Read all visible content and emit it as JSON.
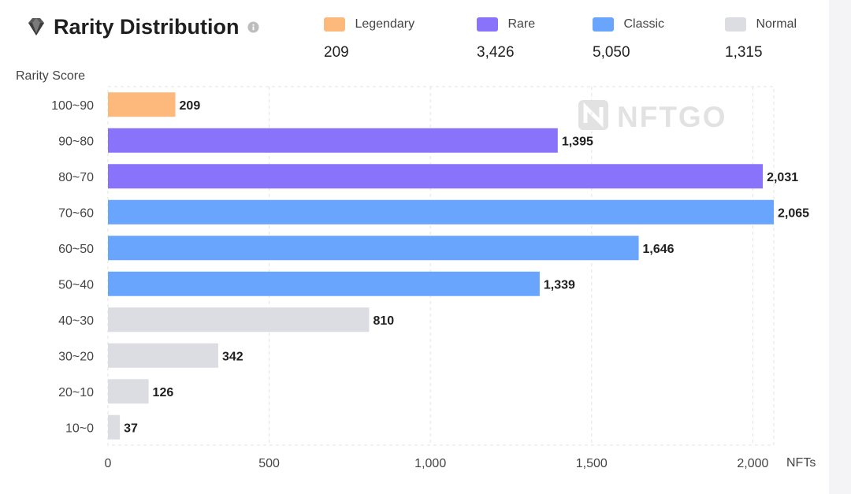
{
  "header": {
    "title": "Rarity Distribution",
    "title_icon": "diamond-icon",
    "info_icon": "info-icon"
  },
  "legend": [
    {
      "name": "Legendary",
      "count": "209",
      "color": "#fdb97c"
    },
    {
      "name": "Rare",
      "count": "3,426",
      "color": "#8a73fb"
    },
    {
      "name": "Classic",
      "count": "5,050",
      "color": "#69a5fd"
    },
    {
      "name": "Normal",
      "count": "1,315",
      "color": "#dcdde3"
    }
  ],
  "watermark": "NFTGO",
  "chart_data": {
    "type": "bar",
    "orientation": "horizontal",
    "ylabel": "Rarity Score",
    "xlabel": "NFTs",
    "categories": [
      "100~90",
      "90~80",
      "80~70",
      "70~60",
      "60~50",
      "50~40",
      "40~30",
      "30~20",
      "20~10",
      "10~0"
    ],
    "values": [
      209,
      1395,
      2031,
      2065,
      1646,
      1339,
      810,
      342,
      126,
      37
    ],
    "value_labels": [
      "209",
      "1,395",
      "2,031",
      "2,065",
      "1,646",
      "1,339",
      "810",
      "342",
      "126",
      "37"
    ],
    "tiers": [
      "Legendary",
      "Rare",
      "Rare",
      "Classic",
      "Classic",
      "Classic",
      "Normal",
      "Normal",
      "Normal",
      "Normal"
    ],
    "xlim": [
      0,
      2065
    ],
    "xticks": [
      0,
      500,
      1000,
      1500,
      2000
    ],
    "xtick_labels": [
      "0",
      "500",
      "1,000",
      "1,500",
      "2,000"
    ],
    "grid": true
  }
}
